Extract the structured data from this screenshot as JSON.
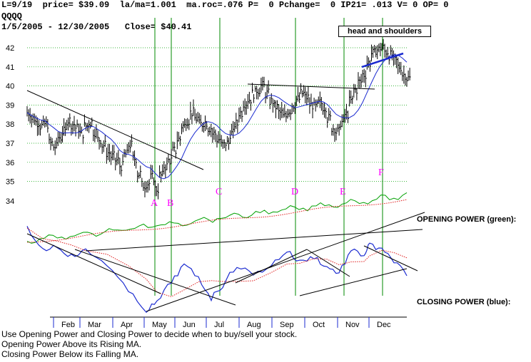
{
  "header": {
    "line1": "L=9/19  price= $39.09  la/ma=1.001  ma.roc=.076 P=  0 Pchange=  0 IP21= .013 V= 0 OP= 0",
    "symbol": "QQQQ",
    "range_close": "1/5/2005 - 12/30/2005   Close= $40.41"
  },
  "annotation_box": "head and shoulders",
  "labels_right": {
    "opening_power": "OPENING POWER (green):",
    "closing_power": "CLOSING POWER (blue):"
  },
  "footer": [
    "Use Opening Power and Closing Power to decide when to buy/sell your stock.",
    "Opening Power Above its Rising MA.",
    "Closing Power Below its Falling MA."
  ],
  "colors": {
    "price_bars": "#000000",
    "moving_average": "#1b2bd0",
    "opening_power": "#00a000",
    "closing_power": "#1b2bd0",
    "power_ma": "#e02020",
    "markers": "#ff00ff",
    "vertical_lines": "#008800",
    "grid": "#00a000"
  },
  "chart_data": {
    "type": "ohlc-with-indicators",
    "price_axis": {
      "ticks": [
        "42",
        "41",
        "40",
        "39",
        "38",
        "37",
        "36",
        "35",
        "34"
      ]
    },
    "months": [
      "Feb",
      "Mar",
      "Apr",
      "May",
      "Jun",
      "Jul",
      "Aug",
      "Sep",
      "Oct",
      "Nov",
      "Dec"
    ],
    "markers": [
      {
        "label": "A",
        "date": "2005-04-28"
      },
      {
        "label": "B",
        "date": "2005-05-10"
      },
      {
        "label": "C",
        "date": "2005-07-13"
      },
      {
        "label": "D",
        "date": "2005-09-15"
      },
      {
        "label": "E",
        "date": "2005-10-26"
      },
      {
        "label": "F",
        "date": "2005-11-29"
      }
    ],
    "price_close_approx": [
      38.6,
      38.3,
      38.1,
      37.9,
      38.0,
      37.0,
      36.8,
      37.3,
      37.6,
      38.2,
      38.0,
      37.8,
      37.5,
      37.9,
      38.1,
      37.6,
      37.2,
      36.9,
      36.5,
      36.3,
      36.1,
      35.8,
      36.4,
      36.9,
      36.2,
      35.4,
      34.8,
      34.9,
      35.2,
      34.6,
      35.3,
      35.8,
      36.1,
      36.6,
      37.2,
      37.9,
      38.2,
      38.6,
      38.3,
      38.0,
      38.1,
      37.8,
      37.5,
      37.2,
      36.9,
      37.0,
      37.5,
      38.0,
      38.6,
      39.1,
      39.3,
      39.6,
      39.8,
      40.0,
      39.6,
      39.2,
      38.9,
      38.6,
      38.4,
      38.7,
      39.0,
      39.3,
      39.6,
      39.4,
      39.0,
      38.9,
      39.1,
      38.9,
      38.3,
      37.8,
      37.6,
      38.1,
      38.5,
      39.2,
      39.8,
      40.2,
      40.6,
      41.2,
      41.7,
      41.9,
      42.0,
      41.8,
      41.6,
      41.3,
      41.0,
      40.6,
      40.4
    ],
    "trendlines_price": [
      "falling resistance Feb to May",
      "neckline Aug to Oct near 40",
      "head and shoulders neckline Nov to Dec near 41"
    ]
  }
}
